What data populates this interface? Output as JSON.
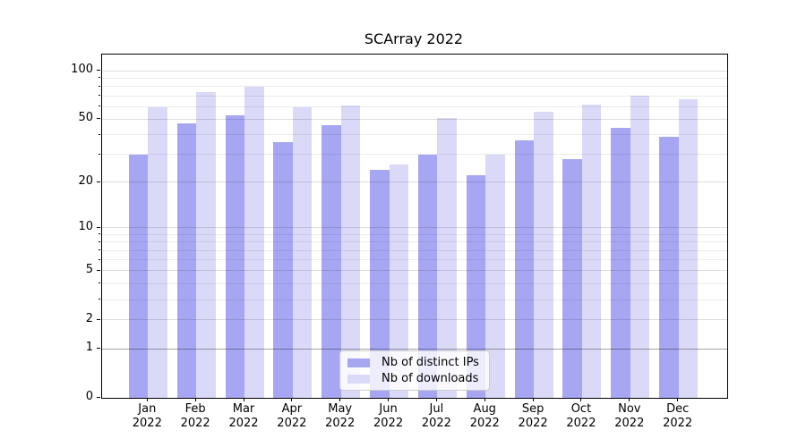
{
  "chart_data": {
    "type": "bar",
    "title": "SCArray 2022",
    "categories": [
      "Jan",
      "Feb",
      "Mar",
      "Apr",
      "May",
      "Jun",
      "Jul",
      "Aug",
      "Sep",
      "Oct",
      "Nov",
      "Dec"
    ],
    "year_label": "2022",
    "series": [
      {
        "name": "Nb of distinct IPs",
        "color": "#a6a6f3",
        "values": [
          30,
          47,
          53,
          36,
          46,
          24,
          30,
          22,
          37,
          28,
          44,
          39
        ]
      },
      {
        "name": "Nb of downloads",
        "color": "#dadaf8",
        "values": [
          59,
          74,
          80,
          59,
          61,
          26,
          51,
          30,
          56,
          62,
          70,
          67
        ]
      }
    ],
    "xlabel": "",
    "ylabel": "",
    "yscale": "log1p",
    "y_ticks": [
      0,
      1,
      2,
      5,
      10,
      20,
      50,
      100
    ],
    "y_minor_gridlines": [
      3,
      4,
      6,
      7,
      8,
      9,
      30,
      40,
      60,
      70,
      80,
      90
    ],
    "ylim": [
      0,
      126
    ],
    "grid": true,
    "legend_position": "lower center"
  },
  "colors": {
    "background": "#ffffff",
    "axis": "#000000",
    "text": "#000000",
    "grid_minor": "rgba(0,0,0,0.08)",
    "grid_major": "rgba(0,0,0,0.13)",
    "grid_unit_line": "rgba(0,0,0,0.35)",
    "legend_border": "#cccccc",
    "legend_bg": "rgba(255,255,255,0.8)"
  }
}
